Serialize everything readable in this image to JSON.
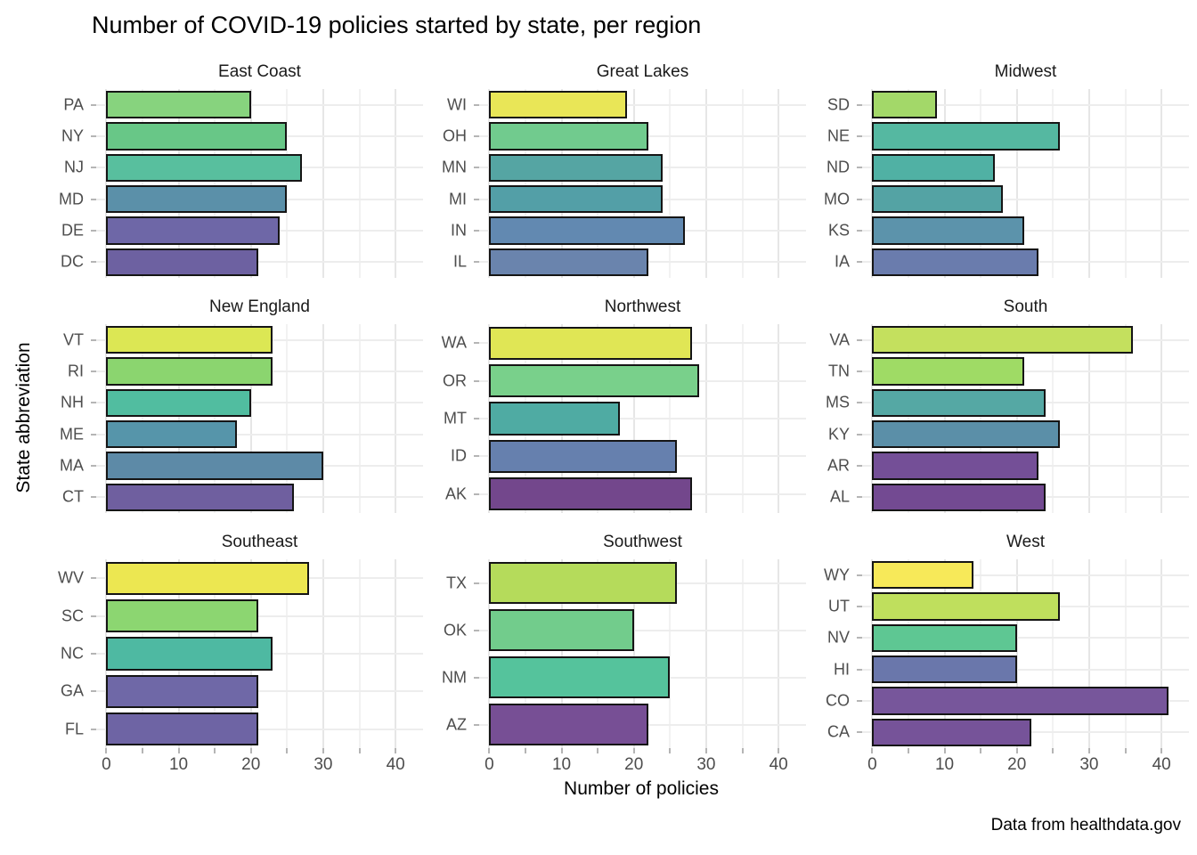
{
  "title": "Number of COVID-19 policies started by state, per region",
  "caption": "Data from healthdata.gov",
  "chart_data": {
    "type": "bar",
    "orientation": "horizontal",
    "title": "Number of COVID-19 policies started by state, per region",
    "xlabel": "Number of policies",
    "ylabel": "State abbreviation",
    "xlim": [
      -1.4,
      43.8
    ],
    "x_ticks": [
      0,
      10,
      20,
      30,
      40
    ],
    "grid": true,
    "legend": "none",
    "facets": [
      {
        "region": "East Coast",
        "states": [
          "PA",
          "NY",
          "NJ",
          "MD",
          "DE",
          "DC"
        ],
        "values": [
          20,
          25,
          27,
          25,
          24,
          21
        ],
        "colors": [
          "#87d37e",
          "#68c787",
          "#58bf9e",
          "#5b90a9",
          "#6e67a7",
          "#6d61a1"
        ]
      },
      {
        "region": "Great Lakes",
        "states": [
          "WI",
          "OH",
          "MN",
          "MI",
          "IN",
          "IL"
        ],
        "values": [
          19,
          22,
          24,
          24,
          27,
          22
        ],
        "colors": [
          "#e9e657",
          "#71cb8e",
          "#55a5a3",
          "#539fa7",
          "#6289b1",
          "#6a84ad"
        ]
      },
      {
        "region": "Midwest",
        "states": [
          "SD",
          "NE",
          "ND",
          "MO",
          "KS",
          "IA"
        ],
        "values": [
          9,
          26,
          17,
          18,
          21,
          23
        ],
        "colors": [
          "#a3d869",
          "#55b8a1",
          "#50b1a4",
          "#54a3a4",
          "#5c93ab",
          "#6a7cad"
        ]
      },
      {
        "region": "New England",
        "states": [
          "VT",
          "RI",
          "NH",
          "ME",
          "MA",
          "CT"
        ],
        "values": [
          23,
          23,
          20,
          18,
          30,
          26
        ],
        "colors": [
          "#dce754",
          "#8bd56f",
          "#51bda0",
          "#5695aa",
          "#5d8aa7",
          "#6f5f9f"
        ]
      },
      {
        "region": "Northwest",
        "states": [
          "WA",
          "OR",
          "MT",
          "ID",
          "AK"
        ],
        "values": [
          28,
          29,
          18,
          26,
          28
        ],
        "colors": [
          "#e0e655",
          "#79d08b",
          "#4faba3",
          "#6680ae",
          "#73478c"
        ]
      },
      {
        "region": "South",
        "states": [
          "VA",
          "TN",
          "MS",
          "KY",
          "AR",
          "AL"
        ],
        "values": [
          36,
          21,
          24,
          26,
          23,
          24
        ],
        "colors": [
          "#c4e05e",
          "#9fdb65",
          "#55a8a4",
          "#5b8fa8",
          "#744f97",
          "#734a92"
        ]
      },
      {
        "region": "Southeast",
        "states": [
          "WV",
          "SC",
          "NC",
          "GA",
          "FL"
        ],
        "values": [
          28,
          21,
          23,
          21,
          21
        ],
        "colors": [
          "#ece751",
          "#8cd671",
          "#4eb9a2",
          "#6f68a7",
          "#6e64a4"
        ]
      },
      {
        "region": "Southwest",
        "states": [
          "TX",
          "OK",
          "NM",
          "AZ"
        ],
        "values": [
          26,
          20,
          25,
          22
        ],
        "colors": [
          "#b5db5b",
          "#72cc8c",
          "#55c39c",
          "#774f95"
        ]
      },
      {
        "region": "West",
        "states": [
          "WY",
          "UT",
          "NV",
          "HI",
          "CO",
          "CA"
        ],
        "values": [
          14,
          26,
          20,
          20,
          41,
          22
        ],
        "colors": [
          "#f7e959",
          "#bfdf5d",
          "#5ec793",
          "#6a77ab",
          "#77569b",
          "#765399"
        ]
      }
    ]
  }
}
